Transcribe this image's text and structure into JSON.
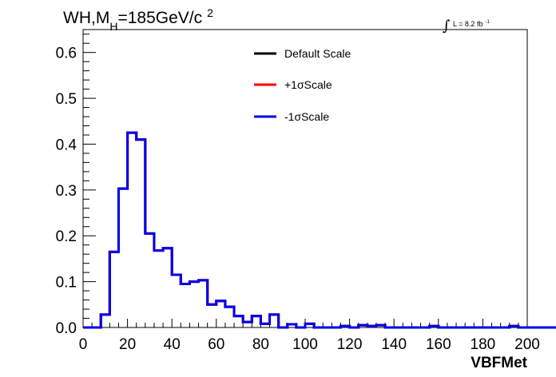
{
  "chart_data": {
    "type": "line",
    "title": {
      "prefix": "WH,M",
      "subscript": "H",
      "suffix": "=185GeV/c",
      "superscript": "2"
    },
    "luminosity": {
      "label": "L = 8.2 fb",
      "superscript": "-1"
    },
    "xlabel": "VBFMet",
    "ylabel": "",
    "xlim": [
      0,
      200
    ],
    "ylim": [
      0,
      0.65
    ],
    "xticks": [
      0,
      20,
      40,
      60,
      80,
      100,
      120,
      140,
      160,
      180,
      200
    ],
    "xtick_labels": [
      "0",
      "20",
      "40",
      "60",
      "80",
      "100",
      "120",
      "140",
      "160",
      "180",
      "200"
    ],
    "yticks": [
      0,
      0.1,
      0.2,
      0.3,
      0.4,
      0.5,
      0.6
    ],
    "ytick_labels": [
      "0.0",
      "0.1",
      "0.2",
      "0.3",
      "0.4",
      "0.5",
      "0.6"
    ],
    "grid": false,
    "legend_position": "top-center",
    "bin_width": 4,
    "bin_edges_start": 0,
    "series": [
      {
        "name": "Default Scale",
        "color": "#000000",
        "values": [
          0,
          0,
          0.028,
          0.165,
          0.303,
          0.425,
          0.41,
          0.205,
          0.168,
          0.173,
          0.115,
          0.095,
          0.1,
          0.103,
          0.05,
          0.058,
          0.045,
          0.025,
          0.012,
          0.025,
          0.008,
          0.028,
          0,
          0.007,
          0,
          0.008,
          0,
          0,
          0,
          0.003,
          0,
          0.005,
          0.003,
          0.005,
          0,
          0,
          0,
          0,
          0,
          0.003,
          0,
          0,
          0,
          0,
          0,
          0,
          0,
          0,
          0.003,
          0,
          0,
          0,
          0,
          0,
          0,
          0,
          0,
          0,
          0,
          0
        ]
      },
      {
        "name": "+1σScale",
        "color": "#ff0000",
        "values": [
          0,
          0,
          0.028,
          0.165,
          0.303,
          0.425,
          0.41,
          0.205,
          0.168,
          0.173,
          0.115,
          0.095,
          0.1,
          0.103,
          0.05,
          0.058,
          0.045,
          0.025,
          0.012,
          0.025,
          0.008,
          0.028,
          0,
          0.007,
          0,
          0.008,
          0,
          0,
          0,
          0.003,
          0,
          0.005,
          0.003,
          0.005,
          0,
          0,
          0,
          0,
          0,
          0.003,
          0,
          0,
          0,
          0,
          0,
          0,
          0,
          0,
          0.003,
          0,
          0,
          0,
          0,
          0,
          0,
          0,
          0,
          0,
          0,
          0
        ]
      },
      {
        "name": "-1σScale",
        "color": "#0000ee",
        "values": [
          0,
          0,
          0.028,
          0.165,
          0.303,
          0.425,
          0.41,
          0.205,
          0.168,
          0.173,
          0.115,
          0.095,
          0.1,
          0.103,
          0.05,
          0.058,
          0.045,
          0.025,
          0.012,
          0.025,
          0.008,
          0.028,
          0,
          0.007,
          0,
          0.008,
          0,
          0,
          0,
          0.003,
          0,
          0.005,
          0.003,
          0.005,
          0,
          0,
          0,
          0,
          0,
          0.003,
          0,
          0,
          0,
          0,
          0,
          0,
          0,
          0,
          0.003,
          0,
          0,
          0,
          0,
          0,
          0,
          0,
          0,
          0,
          0,
          0
        ]
      }
    ]
  }
}
